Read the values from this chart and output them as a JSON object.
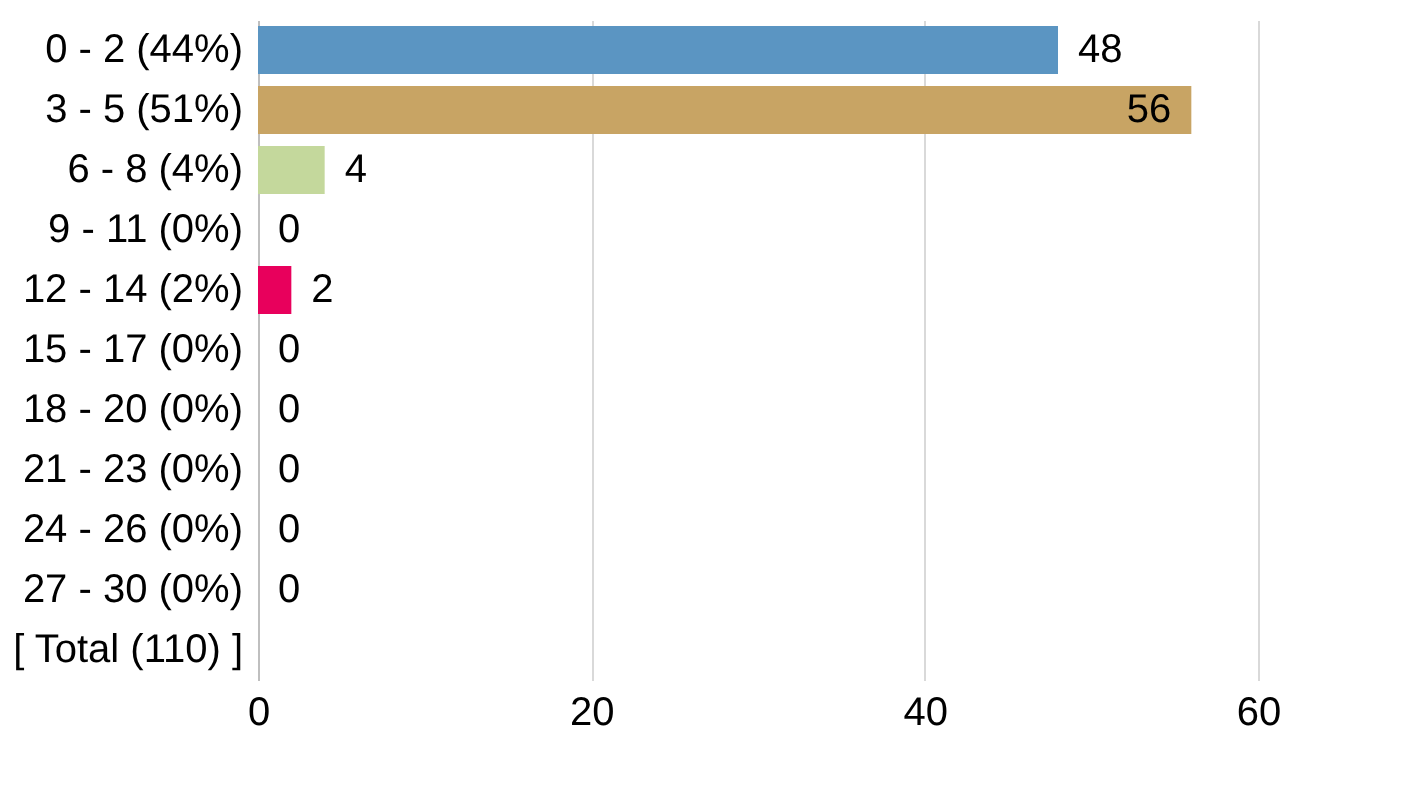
{
  "chart_data": {
    "type": "bar",
    "orientation": "horizontal",
    "categories": [
      "0 - 2 (44%)",
      "3 - 5 (51%)",
      "6 - 8 (4%)",
      "9 - 11 (0%)",
      "12 - 14 (2%)",
      "15 - 17 (0%)",
      "18 - 20 (0%)",
      "21 - 23 (0%)",
      "24 - 26 (0%)",
      "27 - 30 (0%)",
      "[ Total (110) ]"
    ],
    "values": [
      48,
      56,
      4,
      0,
      2,
      0,
      0,
      0,
      0,
      0,
      null
    ],
    "colors": [
      "#5b95c2",
      "#c8a464",
      "#c4d89c",
      "#9c9c9c",
      "#e8005c",
      "#9c9c9c",
      "#9c9c9c",
      "#9c9c9c",
      "#9c9c9c",
      "#9c9c9c",
      "#9c9c9c"
    ],
    "xlim": [
      0,
      60
    ],
    "xticks": [
      0,
      20,
      40,
      60
    ],
    "grid": "x",
    "data_labels": true
  }
}
